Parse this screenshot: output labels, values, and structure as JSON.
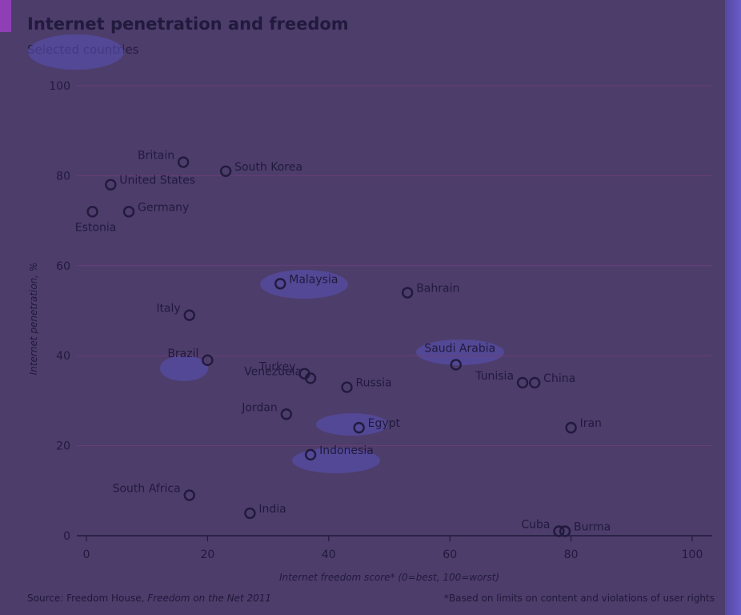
{
  "title": "Internet penetration and freedom",
  "subtitle": "Selected countries",
  "source_prefix": "Source: Freedom House,",
  "source_title": "Freedom on the Net 2011",
  "footnote": "*Based on limits on content and violations of user rights",
  "colors": {
    "background": "#4d3d6b",
    "ink": "#211a3d",
    "gridline": "#6b3f7a",
    "accent_tag": "#8e3fb6"
  },
  "chart_data": {
    "type": "scatter",
    "title": "Internet penetration and freedom",
    "subtitle": "Selected countries",
    "xlabel": "Internet freedom score* (0=best, 100=worst)",
    "ylabel": "Internet penetration, %",
    "xlim": [
      0,
      100
    ],
    "ylim": [
      0,
      100
    ],
    "xticks": [
      0,
      20,
      40,
      60,
      80,
      100
    ],
    "yticks": [
      0,
      20,
      40,
      60,
      80,
      100
    ],
    "grid": "horizontal",
    "points": [
      {
        "label": "Britain",
        "x": 16,
        "y": 83,
        "label_pos": "left"
      },
      {
        "label": "South Korea",
        "x": 23,
        "y": 81,
        "label_pos": "right"
      },
      {
        "label": "United States",
        "x": 4,
        "y": 78,
        "label_pos": "right"
      },
      {
        "label": "Germany",
        "x": 7,
        "y": 72,
        "label_pos": "right"
      },
      {
        "label": "Estonia",
        "x": 1,
        "y": 72,
        "label_pos": "below"
      },
      {
        "label": "Malaysia",
        "x": 32,
        "y": 56,
        "label_pos": "right"
      },
      {
        "label": "Bahrain",
        "x": 53,
        "y": 54,
        "label_pos": "right"
      },
      {
        "label": "Italy",
        "x": 17,
        "y": 49,
        "label_pos": "left"
      },
      {
        "label": "Saudi Arabia",
        "x": 61,
        "y": 38,
        "label_pos": "above"
      },
      {
        "label": "Brazil",
        "x": 20,
        "y": 39,
        "label_pos": "left"
      },
      {
        "label": "Turkey",
        "x": 36,
        "y": 36,
        "label_pos": "left"
      },
      {
        "label": "Venezuela",
        "x": 37,
        "y": 35,
        "label_pos": "left"
      },
      {
        "label": "Russia",
        "x": 43,
        "y": 33,
        "label_pos": "right"
      },
      {
        "label": "Tunisia",
        "x": 72,
        "y": 34,
        "label_pos": "left"
      },
      {
        "label": "China",
        "x": 74,
        "y": 34,
        "label_pos": "right"
      },
      {
        "label": "Jordan",
        "x": 33,
        "y": 27,
        "label_pos": "left"
      },
      {
        "label": "Egypt",
        "x": 45,
        "y": 24,
        "label_pos": "right"
      },
      {
        "label": "Iran",
        "x": 80,
        "y": 24,
        "label_pos": "right"
      },
      {
        "label": "Indonesia",
        "x": 37,
        "y": 18,
        "label_pos": "right"
      },
      {
        "label": "South Africa",
        "x": 17,
        "y": 9,
        "label_pos": "left"
      },
      {
        "label": "India",
        "x": 27,
        "y": 5,
        "label_pos": "right"
      },
      {
        "label": "Cuba",
        "x": 78,
        "y": 1,
        "label_pos": "left"
      },
      {
        "label": "Burma",
        "x": 79,
        "y": 1,
        "label_pos": "right"
      }
    ]
  }
}
